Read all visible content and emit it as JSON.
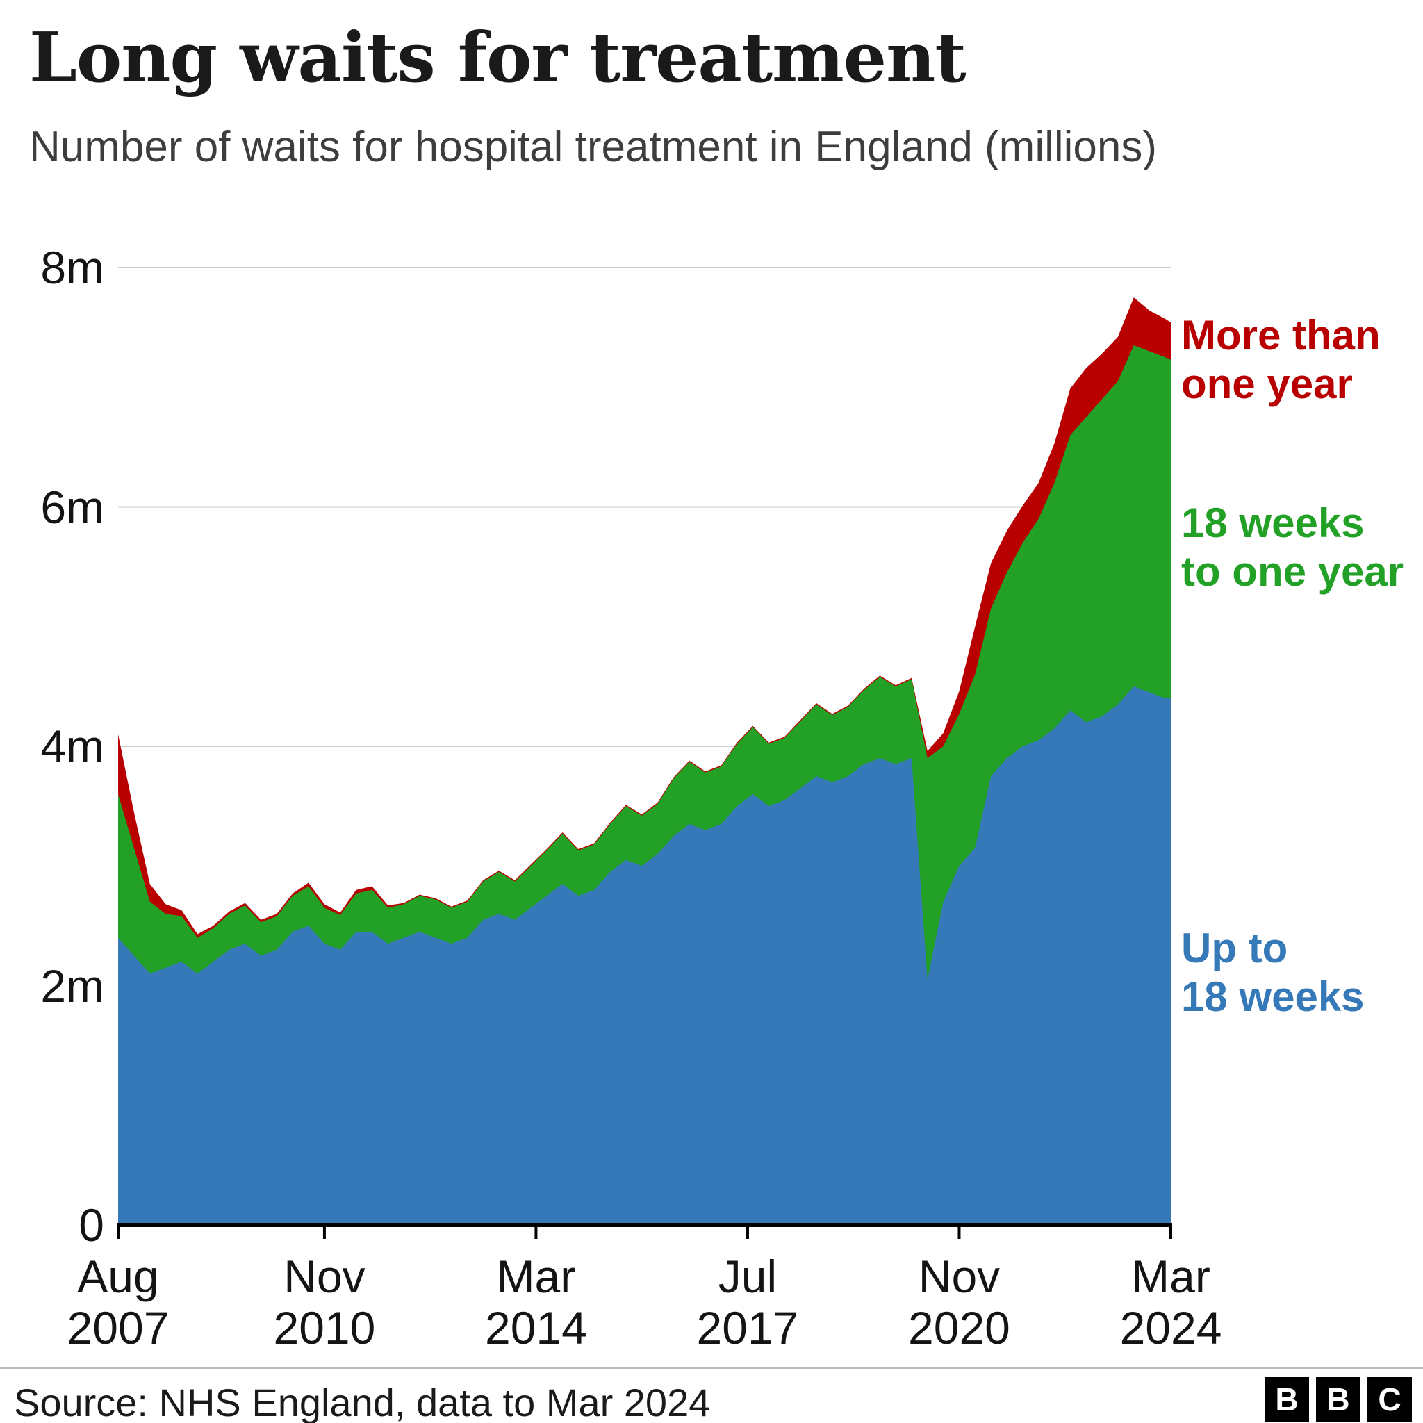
{
  "header": {
    "title": "Long waits for treatment",
    "subtitle": "Number of waits for hospital treatment in England (millions)"
  },
  "footer": {
    "source": "Source: NHS England, data to Mar 2024",
    "logo_letters": [
      "B",
      "B",
      "C"
    ]
  },
  "legend": [
    {
      "id": "more-than-one-year",
      "lines": [
        "More than",
        "one year"
      ],
      "color": "#b80000"
    },
    {
      "id": "18-weeks-to-one-year",
      "lines": [
        "18 weeks",
        "to one year"
      ],
      "color": "#23a127"
    },
    {
      "id": "up-to-18-weeks",
      "lines": [
        "Up to",
        "18 weeks"
      ],
      "color": "#3579b8"
    }
  ],
  "chart_data": {
    "type": "area",
    "stacked": true,
    "title": "Long waits for treatment",
    "subtitle": "Number of waits for hospital treatment in England (millions)",
    "xlabel": "",
    "ylabel": "Number of waits (millions)",
    "ylim": [
      0,
      8
    ],
    "grid": true,
    "legend_position": "right",
    "x_unit": "month",
    "x": [
      "2007-08",
      "2007-11",
      "2008-02",
      "2008-05",
      "2008-08",
      "2008-11",
      "2009-02",
      "2009-05",
      "2009-08",
      "2009-11",
      "2010-02",
      "2010-05",
      "2010-08",
      "2010-11",
      "2011-02",
      "2011-05",
      "2011-08",
      "2011-11",
      "2012-02",
      "2012-05",
      "2012-08",
      "2012-11",
      "2013-02",
      "2013-05",
      "2013-08",
      "2013-11",
      "2014-02",
      "2014-05",
      "2014-08",
      "2014-11",
      "2015-02",
      "2015-05",
      "2015-08",
      "2015-11",
      "2016-02",
      "2016-05",
      "2016-08",
      "2016-11",
      "2017-02",
      "2017-05",
      "2017-08",
      "2017-11",
      "2018-02",
      "2018-05",
      "2018-08",
      "2018-11",
      "2019-02",
      "2019-05",
      "2019-08",
      "2019-11",
      "2020-02",
      "2020-05",
      "2020-08",
      "2020-11",
      "2021-02",
      "2021-05",
      "2021-08",
      "2021-11",
      "2022-02",
      "2022-05",
      "2022-08",
      "2022-11",
      "2023-02",
      "2023-05",
      "2023-08",
      "2023-11",
      "2024-02",
      "2024-03"
    ],
    "series": [
      {
        "name": "Up to 18 weeks",
        "color": "#3579b8",
        "values": [
          2.4,
          2.25,
          2.1,
          2.15,
          2.2,
          2.1,
          2.2,
          2.3,
          2.35,
          2.25,
          2.3,
          2.45,
          2.5,
          2.35,
          2.3,
          2.45,
          2.45,
          2.35,
          2.4,
          2.45,
          2.4,
          2.35,
          2.4,
          2.55,
          2.6,
          2.55,
          2.65,
          2.75,
          2.85,
          2.75,
          2.8,
          2.95,
          3.05,
          3.0,
          3.1,
          3.25,
          3.35,
          3.3,
          3.35,
          3.5,
          3.6,
          3.5,
          3.55,
          3.65,
          3.75,
          3.7,
          3.75,
          3.85,
          3.9,
          3.85,
          3.9,
          2.05,
          2.7,
          3.0,
          3.15,
          3.75,
          3.9,
          4.0,
          4.05,
          4.15,
          4.3,
          4.2,
          4.25,
          4.35,
          4.5,
          4.45,
          4.4,
          4.4
        ]
      },
      {
        "name": "18 weeks to one year",
        "color": "#23a127",
        "values": [
          1.2,
          0.9,
          0.6,
          0.45,
          0.38,
          0.3,
          0.28,
          0.3,
          0.32,
          0.28,
          0.28,
          0.3,
          0.33,
          0.3,
          0.29,
          0.32,
          0.35,
          0.3,
          0.28,
          0.3,
          0.32,
          0.3,
          0.3,
          0.32,
          0.35,
          0.32,
          0.35,
          0.38,
          0.42,
          0.38,
          0.38,
          0.4,
          0.45,
          0.42,
          0.42,
          0.48,
          0.52,
          0.48,
          0.48,
          0.52,
          0.56,
          0.52,
          0.52,
          0.56,
          0.6,
          0.56,
          0.58,
          0.62,
          0.68,
          0.65,
          0.66,
          1.85,
          1.3,
          1.27,
          1.45,
          1.4,
          1.55,
          1.7,
          1.85,
          2.05,
          2.3,
          2.55,
          2.65,
          2.7,
          2.85,
          2.85,
          2.85,
          2.83
        ]
      },
      {
        "name": "More than one year",
        "color": "#b80000",
        "values": [
          0.5,
          0.3,
          0.15,
          0.08,
          0.05,
          0.03,
          0.02,
          0.02,
          0.02,
          0.02,
          0.02,
          0.02,
          0.03,
          0.03,
          0.02,
          0.03,
          0.03,
          0.02,
          0.01,
          0.01,
          0.01,
          0.01,
          0.01,
          0.01,
          0.01,
          0.01,
          0.01,
          0.01,
          0.01,
          0.01,
          0.01,
          0.01,
          0.01,
          0.01,
          0.01,
          0.01,
          0.01,
          0.01,
          0.01,
          0.01,
          0.01,
          0.01,
          0.01,
          0.01,
          0.01,
          0.01,
          0.01,
          0.01,
          0.01,
          0.01,
          0.01,
          0.06,
          0.11,
          0.19,
          0.4,
          0.38,
          0.35,
          0.31,
          0.3,
          0.33,
          0.39,
          0.41,
          0.38,
          0.37,
          0.4,
          0.34,
          0.32,
          0.31
        ]
      }
    ],
    "y_ticks": [
      {
        "value": 0,
        "label": "0"
      },
      {
        "value": 2,
        "label": "2m"
      },
      {
        "value": 4,
        "label": "4m"
      },
      {
        "value": 6,
        "label": "6m"
      },
      {
        "value": 8,
        "label": "8m"
      }
    ],
    "x_ticks": [
      {
        "date": "2007-08",
        "lines": [
          "Aug",
          "2007"
        ]
      },
      {
        "date": "2010-11",
        "lines": [
          "Nov",
          "2010"
        ]
      },
      {
        "date": "2014-03",
        "lines": [
          "Mar",
          "2014"
        ]
      },
      {
        "date": "2017-07",
        "lines": [
          "Jul",
          "2017"
        ]
      },
      {
        "date": "2020-11",
        "lines": [
          "Nov",
          "2020"
        ]
      },
      {
        "date": "2024-03",
        "lines": [
          "Mar",
          "2024"
        ]
      }
    ]
  }
}
